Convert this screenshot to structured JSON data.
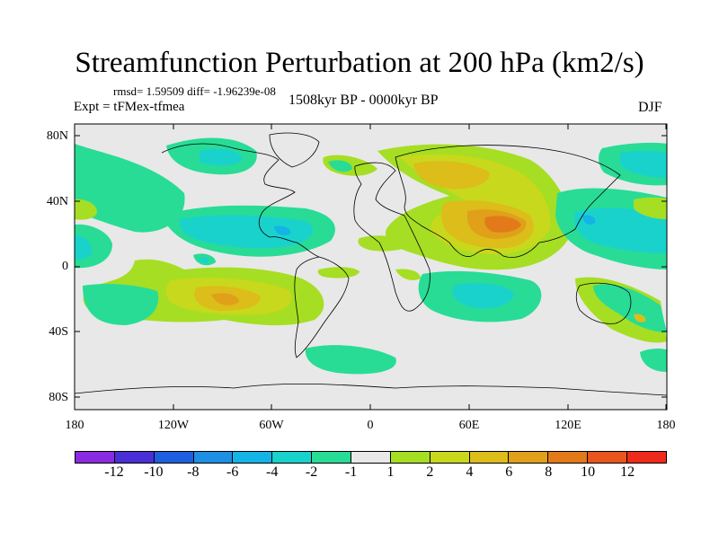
{
  "title": "Streamfunction Perturbation at 200 hPa (km2/s)",
  "stats_line": "rmsd= 1.59509 diff= -1.96239e-08",
  "experiment": "Expt = tFMex-tfmea",
  "period": "1508kyr BP - 0000kyr BP",
  "season": "DJF",
  "axes": {
    "y_labels": [
      "80N",
      "40N",
      "0",
      "40S",
      "80S"
    ],
    "x_labels": [
      "180",
      "120W",
      "60W",
      "0",
      "60E",
      "120E",
      "180"
    ]
  },
  "colorbar": {
    "colors": [
      "#8a2be2",
      "#4b2fd6",
      "#1e5fe0",
      "#1f8fe4",
      "#14b4e6",
      "#19d2cc",
      "#28dc96",
      "#e8e8e8",
      "#a6de23",
      "#c8d81c",
      "#dcbd1a",
      "#e0a01a",
      "#e27a1a",
      "#e8561c",
      "#ee2a1c"
    ],
    "labels": [
      "-12",
      "-10",
      "-8",
      "-6",
      "-4",
      "-2",
      "-1",
      "1",
      "2",
      "4",
      "6",
      "8",
      "10",
      "12"
    ]
  },
  "palette": {
    "ocean_bg": "#e8e8e8",
    "teal": "#28dc96",
    "cyan": "#19d2cc",
    "blue": "#14b4e6",
    "green": "#a6de23",
    "yellowgreen": "#c8d81c",
    "orange": "#dcbd1a",
    "darkorange": "#e0a01a",
    "redorange": "#e27a1a"
  }
}
